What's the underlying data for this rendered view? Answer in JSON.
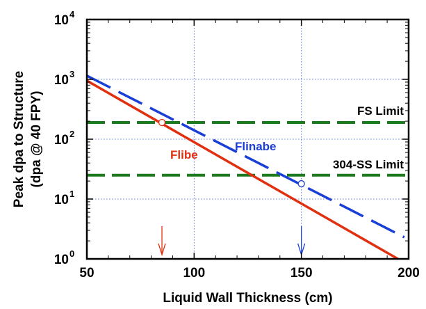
{
  "chart_data": {
    "type": "line",
    "xlabel": "Liquid Wall Thickness (cm)",
    "ylabel": [
      "Peak dpa to Structure",
      "(dpa @ 40 FPY)"
    ],
    "xlim": [
      50,
      200
    ],
    "ylim": [
      1,
      10000
    ],
    "yscale": "log",
    "x_ticks": [
      "50",
      "100",
      "150",
      "200"
    ],
    "y_ticks": [
      {
        "base": "10",
        "exp": "0"
      },
      {
        "base": "10",
        "exp": "1"
      },
      {
        "base": "10",
        "exp": "2"
      },
      {
        "base": "10",
        "exp": "3"
      },
      {
        "base": "10",
        "exp": "4"
      }
    ],
    "grid": true,
    "series": [
      {
        "name": "Flibe",
        "color": "#e03010",
        "style": "solid",
        "x": [
          50,
          195
        ],
        "y": [
          950,
          1
        ]
      },
      {
        "name": "Flinabe",
        "color": "#1a3fd6",
        "style": "dashed",
        "x": [
          50,
          198
        ],
        "y": [
          1150,
          2.3
        ]
      }
    ],
    "limits": [
      {
        "name": "FS Limit",
        "value": 190,
        "color": "#1e7a1e"
      },
      {
        "name": "304-SS Limit",
        "value": 25,
        "color": "#1e7a1e"
      }
    ],
    "markers": [
      {
        "x": 85,
        "y": 190,
        "color": "#e03010"
      },
      {
        "x": 150,
        "y": 18,
        "color": "#1a3fd6"
      }
    ],
    "arrows": [
      {
        "x": 85,
        "color": "#e03010"
      },
      {
        "x": 150,
        "color": "#1a3fd6"
      }
    ]
  }
}
